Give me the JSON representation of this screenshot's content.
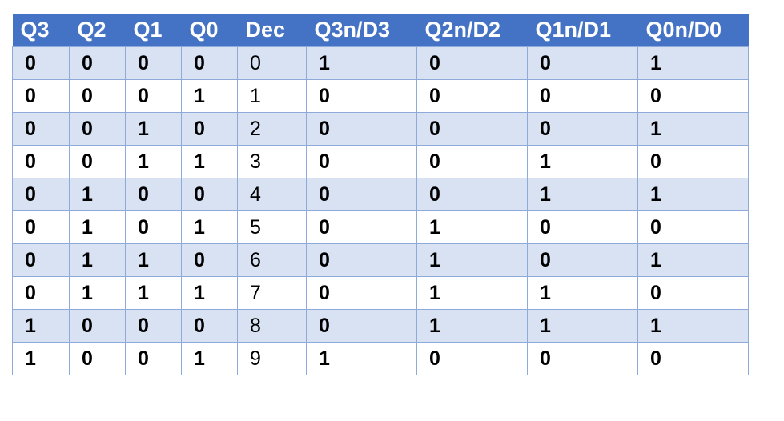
{
  "table": {
    "headers": [
      "Q3",
      "Q2",
      "Q1",
      "Q0",
      "Dec",
      "Q3n/D3",
      "Q2n/D2",
      "Q1n/D1",
      "Q0n/D0"
    ],
    "rows": [
      [
        "0",
        "0",
        "0",
        "0",
        "0",
        "1",
        "0",
        "0",
        "1"
      ],
      [
        "0",
        "0",
        "0",
        "1",
        "1",
        "0",
        "0",
        "0",
        "0"
      ],
      [
        "0",
        "0",
        "1",
        "0",
        "2",
        "0",
        "0",
        "0",
        "1"
      ],
      [
        "0",
        "0",
        "1",
        "1",
        "3",
        "0",
        "0",
        "1",
        "0"
      ],
      [
        "0",
        "1",
        "0",
        "0",
        "4",
        "0",
        "0",
        "1",
        "1"
      ],
      [
        "0",
        "1",
        "0",
        "1",
        "5",
        "0",
        "1",
        "0",
        "0"
      ],
      [
        "0",
        "1",
        "1",
        "0",
        "6",
        "0",
        "1",
        "0",
        "1"
      ],
      [
        "0",
        "1",
        "1",
        "1",
        "7",
        "0",
        "1",
        "1",
        "0"
      ],
      [
        "1",
        "0",
        "0",
        "0",
        "8",
        "0",
        "1",
        "1",
        "1"
      ],
      [
        "1",
        "0",
        "0",
        "1",
        "9",
        "1",
        "0",
        "0",
        "0"
      ]
    ]
  },
  "colors": {
    "header_bg": "#4472c4",
    "header_text": "#ffffff",
    "band_bg": "#d9e2f3",
    "border": "#8eaadb"
  }
}
